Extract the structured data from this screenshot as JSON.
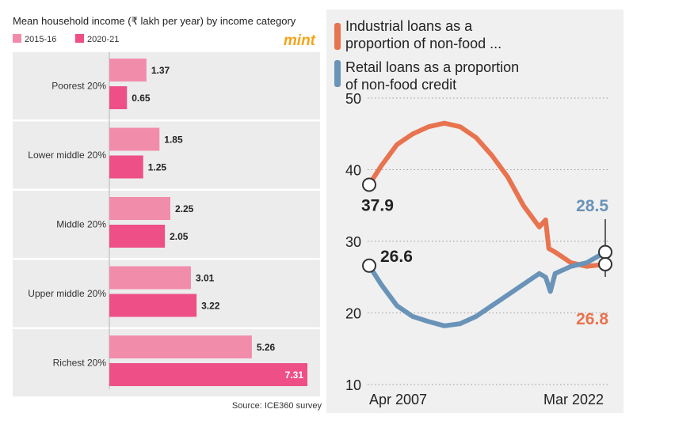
{
  "chart_data": [
    {
      "type": "bar",
      "orientation": "horizontal",
      "title": "Mean household income (₹ lakh per year) by income category",
      "brand": "mint",
      "source": "Source: ICE360 survey",
      "categories": [
        "Poorest 20%",
        "Lower middle 20%",
        "Middle 20%",
        "Upper middle 20%",
        "Richest 20%"
      ],
      "series": [
        {
          "name": "2015-16",
          "color": "#f28cab",
          "values": [
            1.37,
            1.85,
            2.25,
            3.01,
            5.26
          ]
        },
        {
          "name": "2020-21",
          "color": "#ee4f86",
          "values": [
            0.65,
            1.25,
            2.05,
            3.22,
            7.31
          ]
        }
      ],
      "xlim": [
        0,
        7.31
      ],
      "grid": false,
      "legend": "top-left"
    },
    {
      "type": "line",
      "x_start_label": "Apr 2007",
      "x_end_label": "Mar 2022",
      "ylim": [
        10,
        50
      ],
      "yticks": [
        10,
        20,
        30,
        40,
        50
      ],
      "grid": true,
      "legend": "top",
      "series": [
        {
          "name": "Industrial loans as a proportion of non-food ...",
          "color": "#e8734f",
          "start_label": "37.9",
          "end_label": "26.8",
          "x": [
            2007.25,
            2008.0,
            2009.0,
            2010.0,
            2011.0,
            2012.0,
            2013.0,
            2014.0,
            2015.0,
            2016.0,
            2017.0,
            2018.0,
            2018.4,
            2018.6,
            2019.0,
            2020.0,
            2021.0,
            2022.17
          ],
          "values": [
            37.9,
            40.5,
            43.5,
            45.0,
            46.0,
            46.5,
            46.0,
            44.5,
            42.0,
            39.0,
            35.0,
            32.0,
            33.0,
            29.0,
            28.5,
            27.0,
            26.5,
            26.8
          ]
        },
        {
          "name": "Retail loans as a proportion of non-food credit",
          "color": "#6a93b8",
          "start_label": "26.6",
          "end_label": "28.5",
          "x": [
            2007.25,
            2008.0,
            2009.0,
            2010.0,
            2011.0,
            2012.0,
            2013.0,
            2014.0,
            2015.0,
            2016.0,
            2017.0,
            2018.0,
            2018.4,
            2018.7,
            2019.0,
            2020.0,
            2021.0,
            2022.17
          ],
          "values": [
            26.6,
            24.0,
            21.0,
            19.5,
            18.8,
            18.2,
            18.5,
            19.5,
            21.0,
            22.5,
            24.0,
            25.5,
            25.0,
            23.0,
            25.5,
            26.5,
            27.0,
            28.5
          ]
        }
      ]
    }
  ]
}
